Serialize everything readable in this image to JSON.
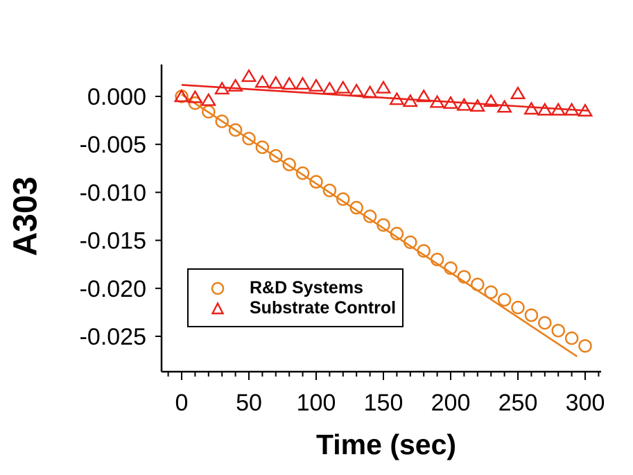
{
  "figure": {
    "background": "#ffffff",
    "text_color": "#000000",
    "axis_color": "#000000"
  },
  "chart_data": {
    "type": "scatter",
    "title": "",
    "xlabel": "Time (sec)",
    "ylabel": "A303",
    "grid": false,
    "xlim": [
      -15,
      312
    ],
    "ylim": [
      -0.0287,
      0.0033
    ],
    "x_tick_values": [
      0,
      50,
      100,
      150,
      200,
      250,
      300
    ],
    "x_tick_labels": [
      "0",
      "50",
      "100",
      "150",
      "200",
      "250",
      "300"
    ],
    "x_minor_tick_interval": 10,
    "y_tick_values": [
      0,
      -0.005,
      -0.01,
      -0.015,
      -0.02,
      -0.025
    ],
    "y_tick_labels": [
      "0.000",
      "-0.005",
      "-0.010",
      "-0.015",
      "-0.020",
      "-0.025"
    ],
    "legend": {
      "position": "inside-lower-left",
      "border_color": "#000000"
    },
    "series": [
      {
        "name": "R&D Systems",
        "marker": "circle",
        "color": "#E8811C",
        "x": [
          0,
          10,
          20,
          30,
          40,
          50,
          60,
          70,
          80,
          90,
          100,
          110,
          120,
          130,
          140,
          150,
          160,
          170,
          180,
          190,
          200,
          210,
          220,
          230,
          240,
          250,
          260,
          270,
          280,
          290,
          300
        ],
        "y": [
          0.0,
          -0.0007,
          -0.0016,
          -0.0026,
          -0.0035,
          -0.0044,
          -0.0053,
          -0.0062,
          -0.0071,
          -0.008,
          -0.0089,
          -0.0098,
          -0.0107,
          -0.0116,
          -0.0125,
          -0.0134,
          -0.0143,
          -0.0152,
          -0.0161,
          -0.017,
          -0.0179,
          -0.0188,
          -0.0196,
          -0.0204,
          -0.0212,
          -0.022,
          -0.0228,
          -0.0236,
          -0.0244,
          -0.0252,
          -0.026
        ],
        "fit_line": {
          "x": [
            0,
            294
          ],
          "y": [
            0.0002,
            -0.0271
          ]
        }
      },
      {
        "name": "Substrate Control",
        "marker": "triangle",
        "color": "#E8201A",
        "x": [
          0,
          10,
          20,
          30,
          40,
          50,
          60,
          70,
          80,
          90,
          100,
          110,
          120,
          130,
          140,
          150,
          160,
          170,
          180,
          190,
          200,
          210,
          220,
          230,
          240,
          250,
          260,
          270,
          280,
          290,
          300
        ],
        "y": [
          0.0,
          -0.0001,
          -0.0004,
          0.0008,
          0.0011,
          0.0021,
          0.0015,
          0.0014,
          0.0013,
          0.0013,
          0.0011,
          0.0008,
          0.0009,
          0.0006,
          0.0004,
          0.0009,
          -0.0003,
          -0.0005,
          0.0,
          -0.0006,
          -0.0007,
          -0.0009,
          -0.001,
          -0.0005,
          -0.0011,
          0.0003,
          -0.0013,
          -0.0014,
          -0.0014,
          -0.0014,
          -0.0015
        ],
        "fit_line": {
          "x": [
            0,
            303
          ],
          "y": [
            0.0012,
            -0.0015
          ]
        }
      }
    ]
  }
}
